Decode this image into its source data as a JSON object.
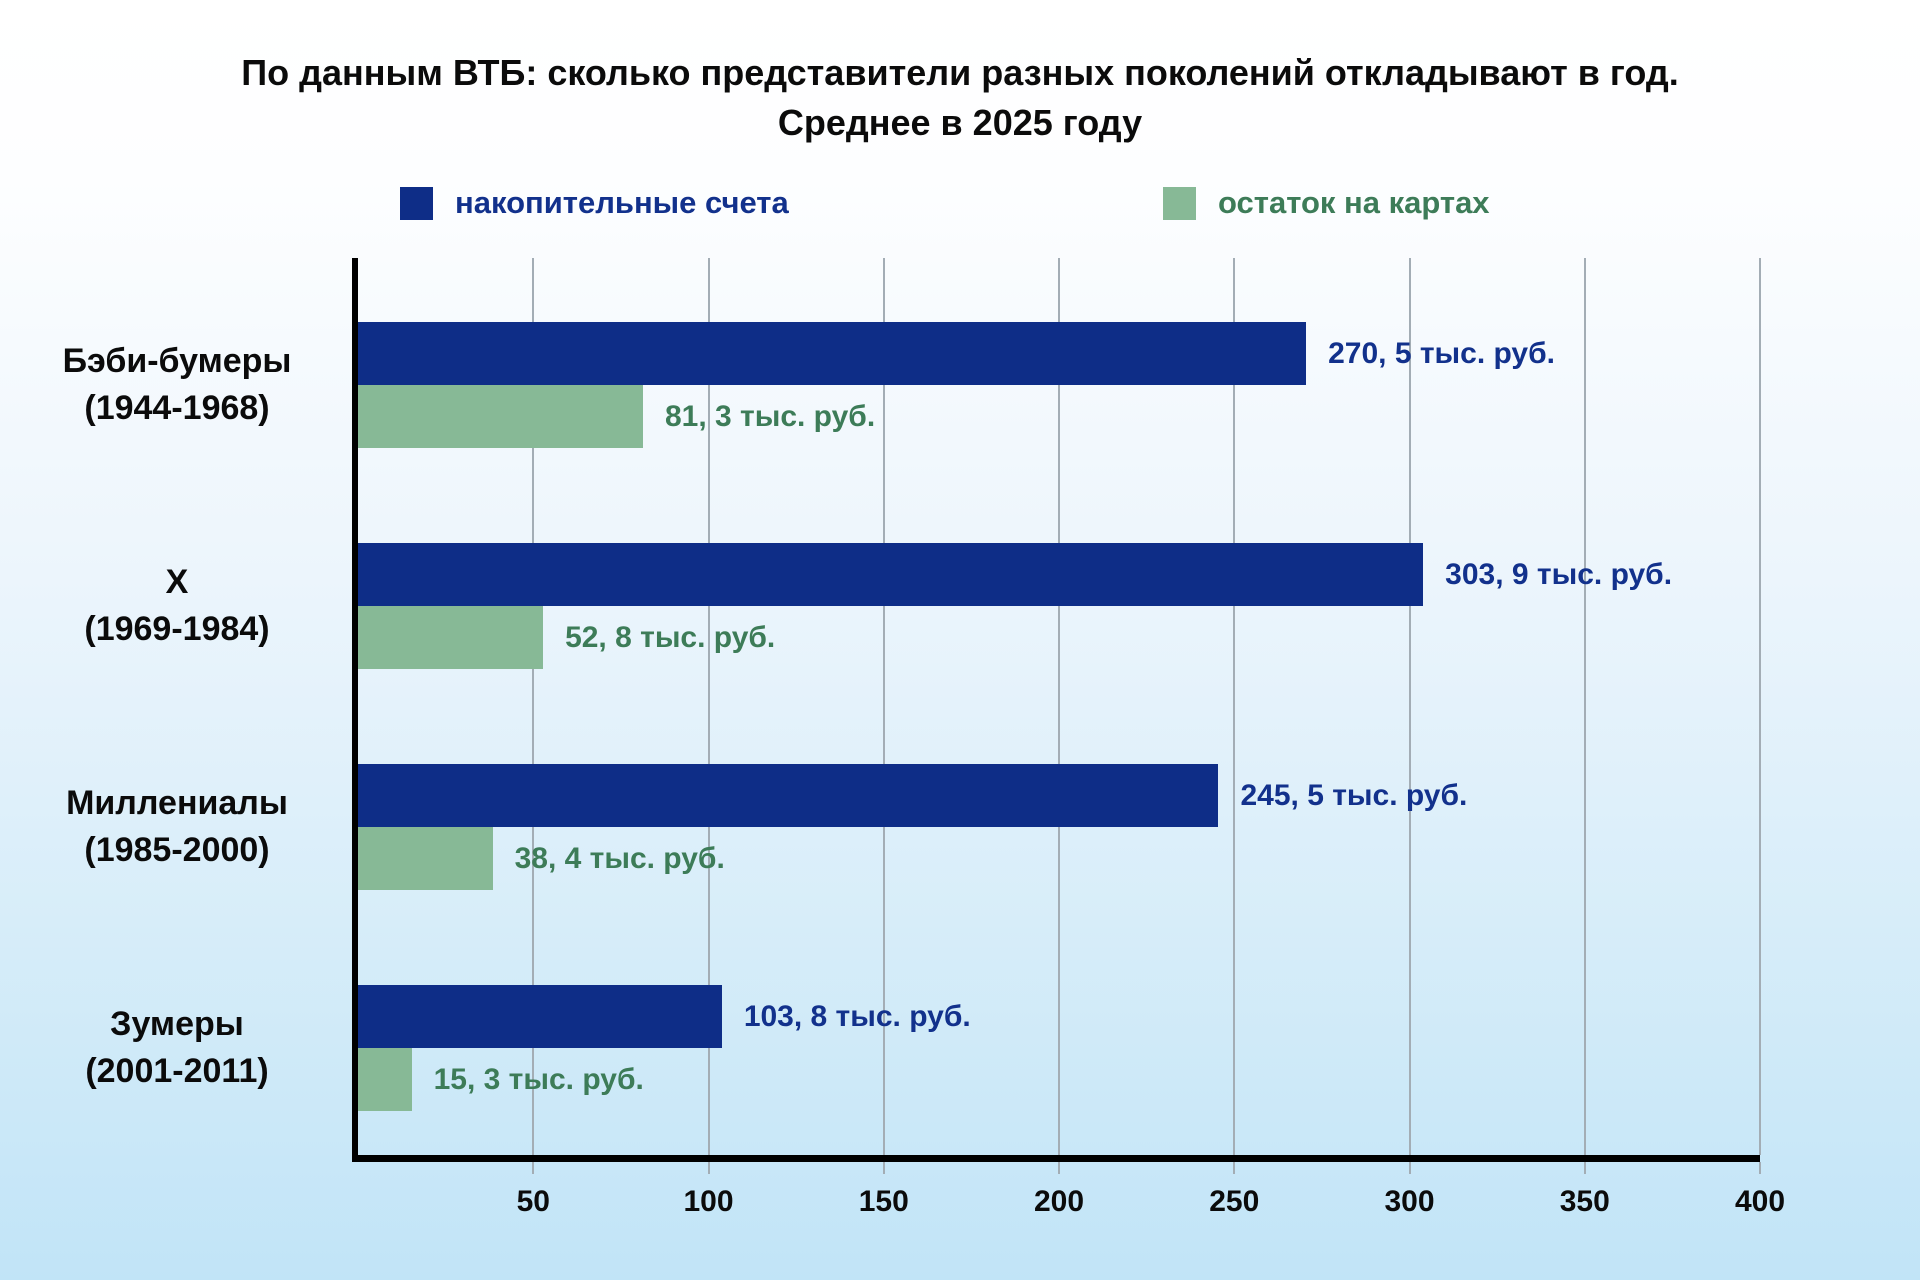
{
  "title": {
    "line1": "По данным ВТБ: сколько представители разных поколений откладывают в год.",
    "line2": "Среднее в 2025 году"
  },
  "legend": [
    {
      "label": "накопительные счета",
      "swatch_color": "#0e2d87",
      "label_color": "#12318c"
    },
    {
      "label": "остаток на картах",
      "swatch_color": "#87b996",
      "label_color": "#3d7c58"
    }
  ],
  "chart_data": {
    "type": "bar",
    "orientation": "horizontal",
    "title": "По данным ВТБ: сколько представители разных поколений откладывают в год. Среднее в 2025 году",
    "legend_position": "top",
    "grid": true,
    "unit": "тыс. руб.",
    "xlim": [
      0,
      400
    ],
    "x_ticks": [
      50,
      100,
      150,
      200,
      250,
      300,
      350,
      400
    ],
    "categories": [
      {
        "name": "Бэби-бумеры",
        "years": "(1944-1968)"
      },
      {
        "name": "X",
        "years": "(1969-1984)"
      },
      {
        "name": "Миллениалы",
        "years": "(1985-2000)"
      },
      {
        "name": "Зумеры",
        "years": "(2001-2011)"
      }
    ],
    "series": [
      {
        "name": "накопительные счета",
        "color": "#0e2d87",
        "label_color": "#12318c",
        "values": [
          270.5,
          303.9,
          245.5,
          103.8
        ],
        "labels": [
          "270, 5 тыс. руб.",
          "303, 9 тыс. руб.",
          "245, 5 тыс. руб.",
          "103, 8 тыс. руб."
        ]
      },
      {
        "name": "остаток на картах",
        "color": "#87b996",
        "label_color": "#3d7c58",
        "values": [
          81.3,
          52.8,
          38.4,
          15.3
        ],
        "labels": [
          "81, 3 тыс. руб.",
          "52, 8 тыс. руб.",
          "38, 4 тыс. руб.",
          "15, 3 тыс. руб."
        ]
      }
    ],
    "axis_color": "#000000",
    "gridline_color": "#a3adb5",
    "background_gradient": [
      "#ffffff",
      "#c1e4f7"
    ]
  }
}
